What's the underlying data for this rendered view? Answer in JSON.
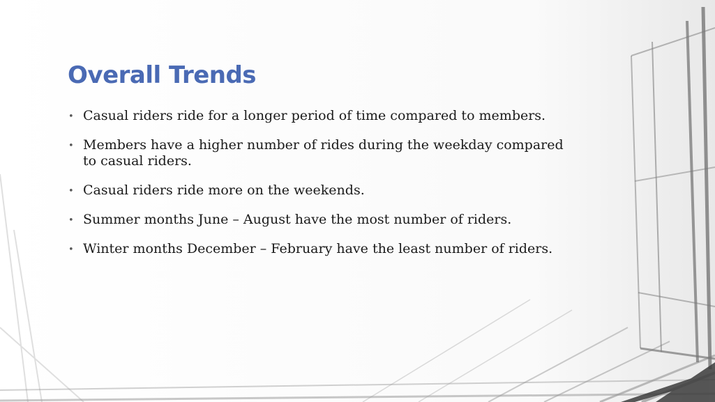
{
  "slide": {
    "title": "Overall Trends",
    "bullets": [
      {
        "text": "Casual riders ride for a longer period of time compared to members."
      },
      {
        "text": "Members have a higher number of rides during the weekday compared to casual riders."
      },
      {
        "text": "Casual riders ride more on the weekends."
      },
      {
        "text": "Summer months June – August have the most number of riders."
      },
      {
        "text": "Winter months December – February have the least number of riders."
      }
    ],
    "bullet_marker": "•",
    "colors": {
      "title": "#4a6ab4",
      "body_text": "#1a1a1a",
      "background": "#ffffff"
    }
  }
}
